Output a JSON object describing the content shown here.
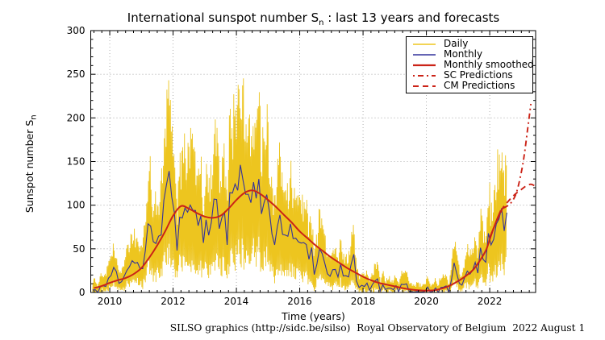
{
  "figure": {
    "title": {
      "prefix": "International sunspot number S",
      "sub": "n",
      "suffix": " : last 13 years and forecasts"
    },
    "y_label": {
      "prefix": "Sunspot number S",
      "sub": "n"
    },
    "x_label": "Time (years)",
    "caption": "SILSO graphics (http://sidc.be/silso)  Royal Observatory of Belgium  2022 August 1",
    "colors": {
      "daily": "#edc51f",
      "monthly": "#32329b",
      "smoothed": "#cb2317",
      "predictions": "#cb2317",
      "grid": "#9a9a9a",
      "axis": "#000000",
      "background": "#ffffff"
    }
  },
  "legend": {
    "items": [
      {
        "label": "Daily",
        "color": "#edc51f",
        "dash": "",
        "width": 1.6
      },
      {
        "label": "Monthly",
        "color": "#32329b",
        "dash": "",
        "width": 1.6
      },
      {
        "label": "Monthly smoothed",
        "color": "#cb2317",
        "dash": "",
        "width": 2.2
      },
      {
        "label": "SC Predictions",
        "color": "#cb2317",
        "dash": "2 4 7 4",
        "width": 2
      },
      {
        "label": "CM Predictions",
        "color": "#cb2317",
        "dash": "7 5",
        "width": 2
      }
    ]
  },
  "chart_data": {
    "type": "line",
    "title": "International sunspot number Sn : last 13 years and forecasts",
    "xlabel": "Time (years)",
    "ylabel": "Sunspot number Sn",
    "xlim": [
      2009.4,
      2023.45
    ],
    "ylim": [
      0,
      300
    ],
    "x_ticks": [
      2010,
      2012,
      2014,
      2016,
      2018,
      2020,
      2022
    ],
    "x_minor_step": 0.25,
    "y_ticks": [
      0,
      50,
      100,
      150,
      200,
      250,
      300
    ],
    "y_minor_step": 10,
    "grid": true,
    "legend_position": "upper right",
    "series": [
      {
        "name": "Daily",
        "style": "solid",
        "color": "#edc51f",
        "note": "High-frequency daily sunspot number; noisy band spanning roughly 0.2x to 1.9x the monthly mean, peaks near 245 around 2014, near zero 2019-2020. Rendered from envelope parameters below.",
        "envelope": {
          "seed": 123,
          "points_per_month": 6,
          "hi_base": 1.25,
          "hi_var": 0.65,
          "hi_off": 5,
          "hi_off_var": 6,
          "lo_base": 0.2,
          "lo_var": 0.3,
          "lo_off": -3,
          "lo_off_var": 5,
          "cap": 248,
          "floor": 0
        }
      },
      {
        "name": "Monthly",
        "style": "solid",
        "color": "#32329b",
        "x_start": 2009.4583,
        "x_step": 0.0833333,
        "values": [
          2.9,
          3.2,
          0.0,
          7.1,
          7.7,
          6.9,
          16.3,
          19.5,
          28.7,
          24.0,
          10.4,
          12.4,
          18.8,
          25.2,
          29.6,
          36.4,
          33.6,
          34.4,
          27.3,
          27.3,
          48.3,
          78.6,
          76.1,
          58.2,
          56.1,
          64.5,
          66.0,
          105.4,
          123.6,
          139.1,
          109.3,
          91.2,
          48.0,
          86.2,
          85.3,
          96.6,
          92.0,
          100.1,
          94.1,
          93.9,
          76.5,
          87.6,
          56.8,
          83.3,
          65.5,
          80.4,
          107.0,
          106.5,
          73.1,
          85.7,
          91.8,
          54.5,
          114.4,
          113.9,
          124.2,
          117.0,
          146.1,
          128.7,
          112.5,
          112.5,
          102.9,
          126.4,
          107.8,
          130.0,
          90.0,
          103.1,
          112.1,
          93.0,
          66.7,
          54.5,
          75.3,
          88.8,
          66.5,
          65.8,
          64.4,
          78.6,
          61.7,
          62.2,
          58.0,
          56.6,
          57.2,
          54.9,
          37.9,
          51.5,
          20.5,
          32.4,
          50.2,
          44.6,
          33.4,
          21.4,
          18.5,
          26.1,
          26.4,
          17.7,
          32.3,
          18.9,
          19.2,
          17.8,
          32.6,
          43.7,
          13.2,
          5.7,
          8.2,
          6.8,
          10.7,
          2.5,
          8.9,
          13.1,
          15.6,
          1.6,
          8.7,
          3.3,
          4.9,
          4.9,
          3.1,
          7.8,
          0.8,
          9.4,
          9.1,
          9.9,
          1.2,
          0.9,
          0.5,
          1.1,
          0.4,
          0.5,
          1.5,
          6.2,
          0.2,
          1.5,
          5.2,
          0.2,
          5.8,
          6.1,
          7.5,
          0.6,
          14.4,
          34.0,
          21.8,
          10.4,
          8.4,
          17.2,
          24.5,
          21.1,
          25.1,
          34.5,
          22.2,
          51.2,
          37.9,
          34.6,
          67.8,
          54.5,
          60.8,
          78.5,
          84.1,
          96.5,
          70.5,
          91.4
        ]
      },
      {
        "name": "Monthly smoothed",
        "style": "solid",
        "color": "#cb2317",
        "points": [
          [
            2009.5,
            5
          ],
          [
            2009.75,
            7.5
          ],
          [
            2010,
            11
          ],
          [
            2010.25,
            14
          ],
          [
            2010.5,
            16.5
          ],
          [
            2010.75,
            21
          ],
          [
            2011,
            28
          ],
          [
            2011.25,
            40
          ],
          [
            2011.5,
            54
          ],
          [
            2011.75,
            70
          ],
          [
            2012,
            88
          ],
          [
            2012.25,
            99
          ],
          [
            2012.5,
            96
          ],
          [
            2012.75,
            91
          ],
          [
            2013,
            87
          ],
          [
            2013.25,
            85.5
          ],
          [
            2013.5,
            88
          ],
          [
            2013.75,
            96
          ],
          [
            2014,
            106
          ],
          [
            2014.25,
            114
          ],
          [
            2014.5,
            117
          ],
          [
            2014.75,
            113
          ],
          [
            2015,
            106
          ],
          [
            2015.25,
            98
          ],
          [
            2015.5,
            89
          ],
          [
            2015.75,
            80
          ],
          [
            2016,
            70
          ],
          [
            2016.25,
            62
          ],
          [
            2016.5,
            54
          ],
          [
            2016.75,
            47
          ],
          [
            2017,
            40
          ],
          [
            2017.25,
            34
          ],
          [
            2017.5,
            28
          ],
          [
            2017.75,
            23
          ],
          [
            2018,
            18
          ],
          [
            2018.25,
            14
          ],
          [
            2018.5,
            11
          ],
          [
            2018.75,
            9
          ],
          [
            2019,
            7
          ],
          [
            2019.25,
            5
          ],
          [
            2019.5,
            3.5
          ],
          [
            2019.75,
            2.5
          ],
          [
            2020,
            2
          ],
          [
            2020.25,
            2.5
          ],
          [
            2020.5,
            4.5
          ],
          [
            2020.75,
            8
          ],
          [
            2021,
            13
          ],
          [
            2021.25,
            19
          ],
          [
            2021.5,
            27
          ],
          [
            2021.75,
            40
          ],
          [
            2021.9,
            50
          ],
          [
            2022.05,
            66
          ],
          [
            2022.2,
            81
          ],
          [
            2022.35,
            94
          ]
        ]
      },
      {
        "name": "SC Predictions",
        "style": "dashdot",
        "color": "#cb2317",
        "points": [
          [
            2022.0,
            63
          ],
          [
            2022.2,
            80
          ],
          [
            2022.4,
            95
          ],
          [
            2022.55,
            99
          ],
          [
            2022.7,
            104
          ],
          [
            2022.85,
            115
          ],
          [
            2023.0,
            138
          ],
          [
            2023.1,
            160
          ],
          [
            2023.2,
            188
          ],
          [
            2023.3,
            216
          ]
        ]
      },
      {
        "name": "CM Predictions",
        "style": "dashed",
        "color": "#cb2317",
        "points": [
          [
            2022.0,
            63
          ],
          [
            2022.2,
            80
          ],
          [
            2022.4,
            96
          ],
          [
            2022.55,
            103
          ],
          [
            2022.7,
            109
          ],
          [
            2022.85,
            114
          ],
          [
            2023.0,
            118
          ],
          [
            2023.15,
            122
          ],
          [
            2023.3,
            124
          ],
          [
            2023.43,
            122
          ]
        ]
      }
    ]
  }
}
